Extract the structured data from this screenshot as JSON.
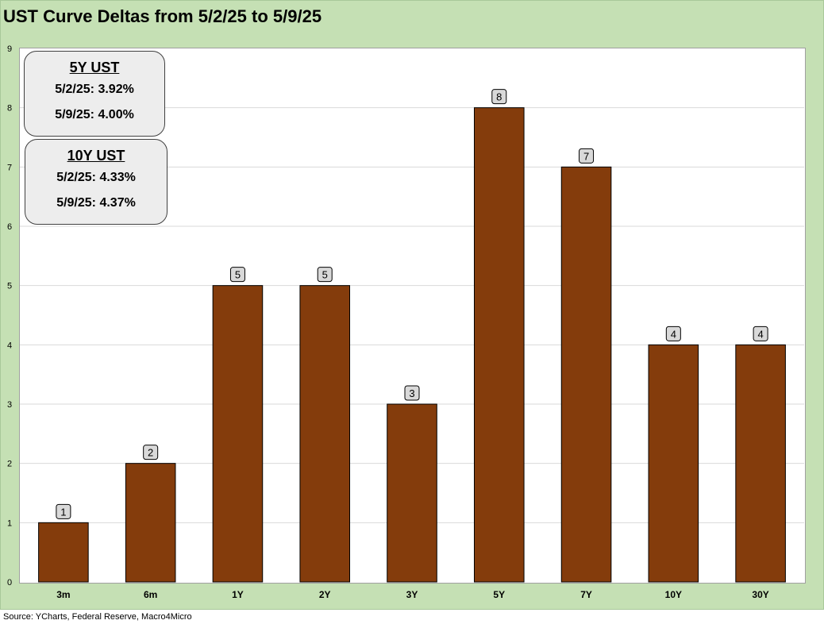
{
  "title": "UST Curve Deltas from 5/2/25 to 5/9/25",
  "source": "Source: YCharts, Federal Reserve, Macro4Micro",
  "boxes": {
    "five_y": {
      "title": "5Y UST",
      "line1": "5/2/25: 3.92%",
      "line2": "5/9/25: 4.00%"
    },
    "ten_y": {
      "title": "10Y UST",
      "line1": "5/2/25: 4.33%",
      "line2": "5/9/25: 4.37%"
    }
  },
  "colors": {
    "bar": "#843c0c",
    "frame": "#c5e0b4",
    "grid": "#d9d9d9",
    "label_box": "#d9d9d9"
  },
  "chart_data": {
    "type": "bar",
    "categories": [
      "3m",
      "6m",
      "1Y",
      "2Y",
      "3Y",
      "5Y",
      "7Y",
      "10Y",
      "30Y"
    ],
    "values": [
      1,
      2,
      5,
      5,
      3,
      8,
      7,
      4,
      4
    ],
    "title": "UST Curve Deltas from 5/2/25 to 5/9/25",
    "xlabel": "",
    "ylabel": "",
    "ylim": [
      0,
      9
    ],
    "yticks": [
      0,
      1,
      2,
      3,
      4,
      5,
      6,
      7,
      8,
      9
    ],
    "grid": true,
    "data_labels": true
  }
}
